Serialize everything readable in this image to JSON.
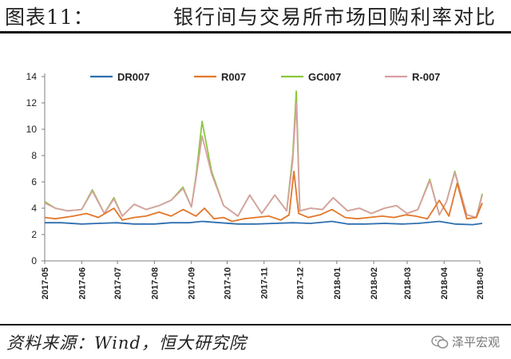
{
  "header": {
    "figure_label": "图表11：",
    "title": "银行间与交易所市场回购利率对比"
  },
  "footer": {
    "source": "资料来源：Wind，恒大研究院",
    "watermark": "泽平宏观"
  },
  "colors": {
    "DR007": "#2e6fb0",
    "R007": "#e2772b",
    "GC007": "#8cc63f",
    "R-007": "#d8a0a3",
    "axis": "#7f7f7f"
  },
  "chart_data": {
    "type": "line",
    "title": "",
    "xlabel": "",
    "ylabel": "",
    "ylim": [
      0,
      14
    ],
    "yticks": [
      0,
      2,
      4,
      6,
      8,
      10,
      12,
      14
    ],
    "grid": false,
    "legend_position": "top",
    "x_ticks": [
      "2017-05",
      "2017-06",
      "2017-07",
      "2017-08",
      "2017-09",
      "2017-10",
      "2017-11",
      "2017-12",
      "2018-01",
      "2018-02",
      "2018-03",
      "2018-04",
      "2018-05"
    ],
    "series": [
      {
        "name": "DR007",
        "x": [
          "2017-05-01",
          "2017-05-15",
          "2017-06-01",
          "2017-06-15",
          "2017-06-30",
          "2017-07-15",
          "2017-08-01",
          "2017-08-15",
          "2017-08-30",
          "2017-09-10",
          "2017-09-25",
          "2017-10-10",
          "2017-10-25",
          "2017-11-10",
          "2017-11-25",
          "2017-12-10",
          "2017-12-28",
          "2018-01-10",
          "2018-01-25",
          "2018-02-10",
          "2018-02-25",
          "2018-03-10",
          "2018-03-28",
          "2018-04-10",
          "2018-04-25",
          "2018-05-03"
        ],
        "y": [
          2.9,
          2.9,
          2.8,
          2.85,
          2.9,
          2.8,
          2.8,
          2.9,
          2.9,
          3.0,
          2.9,
          2.8,
          2.8,
          2.85,
          2.9,
          2.85,
          3.0,
          2.8,
          2.8,
          2.85,
          2.8,
          2.85,
          3.0,
          2.8,
          2.75,
          2.85
        ]
      },
      {
        "name": "R007",
        "x": [
          "2017-05-01",
          "2017-05-10",
          "2017-05-25",
          "2017-06-05",
          "2017-06-15",
          "2017-06-28",
          "2017-07-05",
          "2017-07-15",
          "2017-07-25",
          "2017-08-05",
          "2017-08-15",
          "2017-08-25",
          "2017-09-05",
          "2017-09-12",
          "2017-09-20",
          "2017-09-28",
          "2017-10-05",
          "2017-10-15",
          "2017-10-25",
          "2017-11-05",
          "2017-11-15",
          "2017-11-22",
          "2017-11-26",
          "2017-11-30",
          "2017-12-08",
          "2017-12-18",
          "2017-12-28",
          "2018-01-08",
          "2018-01-18",
          "2018-01-28",
          "2018-02-08",
          "2018-02-18",
          "2018-02-28",
          "2018-03-08",
          "2018-03-18",
          "2018-03-28",
          "2018-04-05",
          "2018-04-12",
          "2018-04-20",
          "2018-04-28",
          "2018-05-03"
        ],
        "y": [
          3.3,
          3.2,
          3.4,
          3.6,
          3.3,
          4.0,
          3.1,
          3.3,
          3.4,
          3.7,
          3.4,
          3.9,
          3.4,
          4.0,
          3.2,
          3.3,
          3.0,
          3.2,
          3.3,
          3.4,
          3.1,
          3.5,
          6.8,
          3.6,
          3.3,
          3.5,
          3.9,
          3.3,
          3.2,
          3.3,
          3.4,
          3.3,
          3.5,
          3.4,
          3.2,
          4.6,
          3.4,
          5.9,
          3.2,
          3.3,
          4.4
        ]
      },
      {
        "name": "GC007",
        "x": [
          "2017-05-01",
          "2017-05-10",
          "2017-05-20",
          "2017-06-01",
          "2017-06-10",
          "2017-06-20",
          "2017-06-28",
          "2017-07-05",
          "2017-07-15",
          "2017-07-25",
          "2017-08-05",
          "2017-08-15",
          "2017-08-25",
          "2017-09-01",
          "2017-09-05",
          "2017-09-10",
          "2017-09-18",
          "2017-09-28",
          "2017-10-10",
          "2017-10-20",
          "2017-10-30",
          "2017-11-10",
          "2017-11-20",
          "2017-11-25",
          "2017-11-28",
          "2017-12-01",
          "2017-12-10",
          "2017-12-20",
          "2017-12-29",
          "2018-01-10",
          "2018-01-20",
          "2018-01-30",
          "2018-02-10",
          "2018-02-20",
          "2018-03-01",
          "2018-03-10",
          "2018-03-20",
          "2018-03-28",
          "2018-04-03",
          "2018-04-10",
          "2018-04-20",
          "2018-04-28",
          "2018-05-03"
        ],
        "y": [
          4.5,
          4.0,
          3.8,
          3.9,
          5.4,
          3.6,
          4.8,
          3.4,
          4.3,
          3.9,
          4.2,
          4.6,
          5.6,
          4.1,
          6.5,
          10.6,
          6.8,
          4.2,
          3.4,
          5.0,
          3.6,
          5.0,
          3.8,
          8.0,
          12.9,
          3.8,
          4.0,
          3.9,
          4.8,
          3.8,
          4.0,
          3.6,
          4.0,
          4.2,
          3.6,
          3.9,
          6.2,
          3.5,
          4.5,
          6.8,
          3.5,
          3.3,
          5.1
        ]
      },
      {
        "name": "R-007",
        "x": [
          "2017-05-01",
          "2017-05-10",
          "2017-05-20",
          "2017-06-01",
          "2017-06-10",
          "2017-06-20",
          "2017-06-28",
          "2017-07-05",
          "2017-07-15",
          "2017-07-25",
          "2017-08-05",
          "2017-08-15",
          "2017-08-25",
          "2017-09-01",
          "2017-09-05",
          "2017-09-10",
          "2017-09-18",
          "2017-09-28",
          "2017-10-10",
          "2017-10-20",
          "2017-10-30",
          "2017-11-10",
          "2017-11-20",
          "2017-11-25",
          "2017-11-28",
          "2017-12-01",
          "2017-12-10",
          "2017-12-20",
          "2017-12-29",
          "2018-01-10",
          "2018-01-20",
          "2018-01-30",
          "2018-02-10",
          "2018-02-20",
          "2018-03-01",
          "2018-03-10",
          "2018-03-20",
          "2018-03-28",
          "2018-04-03",
          "2018-04-10",
          "2018-04-20",
          "2018-04-28",
          "2018-05-03"
        ],
        "y": [
          4.4,
          4.0,
          3.8,
          3.9,
          5.3,
          3.6,
          4.7,
          3.4,
          4.3,
          3.9,
          4.2,
          4.6,
          5.5,
          4.1,
          6.3,
          9.5,
          6.6,
          4.2,
          3.4,
          5.0,
          3.6,
          5.0,
          3.8,
          7.6,
          12.0,
          3.8,
          4.0,
          3.9,
          4.8,
          3.8,
          4.0,
          3.6,
          4.0,
          4.2,
          3.6,
          3.9,
          6.1,
          3.5,
          4.5,
          6.7,
          3.5,
          3.3,
          5.0
        ]
      }
    ]
  }
}
